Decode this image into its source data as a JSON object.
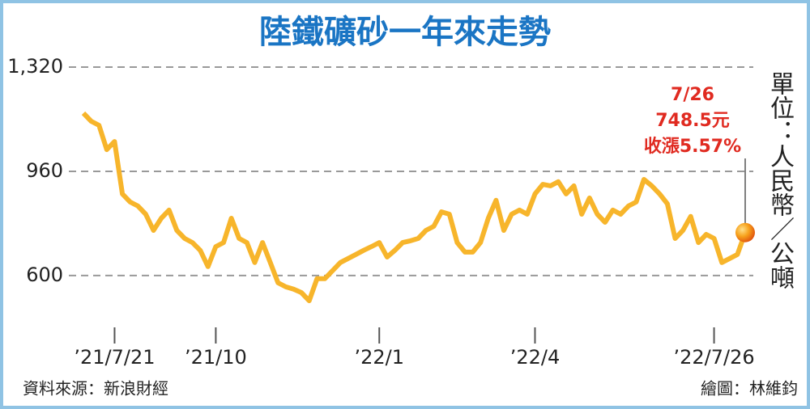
{
  "chart_data": {
    "type": "line",
    "title": "陸鐵礦砂一年來走勢",
    "unit": "單位：人民幣／公噸",
    "source": "資料來源：新浪財經",
    "credit": "繪圖：林維鈞",
    "annotation": {
      "date": "7/26",
      "price": "748.5元",
      "change": "收漲5.57%"
    },
    "categories": [
      null,
      null,
      null,
      null,
      "’21/7/21",
      null,
      null,
      null,
      null,
      null,
      null,
      null,
      null,
      null,
      null,
      null,
      null,
      "’21/10",
      null,
      null,
      null,
      null,
      null,
      null,
      null,
      null,
      null,
      null,
      null,
      null,
      null,
      null,
      null,
      null,
      null,
      null,
      null,
      null,
      "’22/1",
      null,
      null,
      null,
      null,
      null,
      null,
      null,
      null,
      null,
      null,
      null,
      null,
      null,
      null,
      null,
      null,
      null,
      null,
      null,
      "’22/4",
      null,
      null,
      null,
      null,
      null,
      null,
      null,
      null,
      null,
      null,
      null,
      null,
      null,
      null,
      null,
      null,
      null,
      null,
      null,
      null,
      null,
      null,
      "’22/7/26",
      null,
      null,
      null,
      null
    ],
    "series": [
      {
        "color": "#f7b52b",
        "values": [
          1161,
          1133,
          1119,
          1035,
          1063,
          882,
          854,
          840,
          812,
          756,
          798,
          826,
          756,
          728,
          714,
          687,
          631,
          700,
          714,
          798,
          728,
          714,
          645,
          714,
          645,
          575,
          561,
          553,
          541,
          513,
          589,
          589,
          617,
          645,
          659,
          673,
          687,
          700,
          714,
          664,
          687,
          714,
          720,
          728,
          756,
          770,
          820,
          812,
          714,
          681,
          681,
          714,
          798,
          860,
          756,
          812,
          826,
          812,
          882,
          915,
          910,
          924,
          882,
          910,
          812,
          868,
          812,
          784,
          826,
          812,
          840,
          854,
          932,
          910,
          882,
          848,
          728,
          756,
          804,
          714,
          742,
          728,
          645,
          659,
          673,
          748.5
        ]
      }
    ],
    "ylim": [
      435,
      1320
    ],
    "yticks": [
      600,
      960,
      {
        "value": 1320,
        "label": "1,320"
      }
    ],
    "grid": true
  }
}
